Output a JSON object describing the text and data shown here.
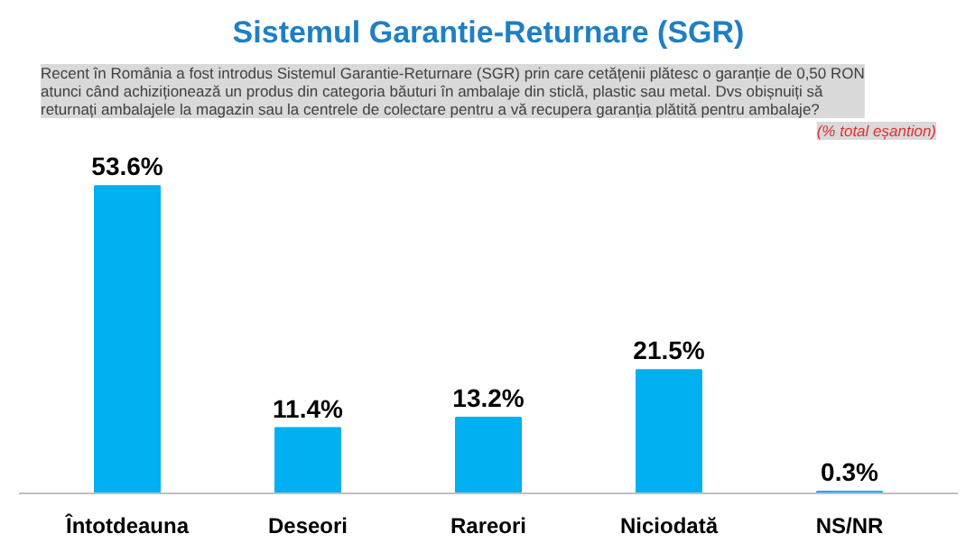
{
  "chart_data": {
    "type": "bar",
    "title": "Sistemul Garantie-Returnare (SGR)",
    "subtitle": "Recent în România a fost introdus Sistemul Garantie-Returnare (SGR) prin care cetățenii plătesc o garanție de 0,50 RON atunci când achiziționează un produs din categoria băuturi în ambalaje din sticlă, plastic sau metal. Dvs obișnuiți să returnați ambalajele la magazin sau la centrele de colectare pentru a vă recupera garanția plătită pentru ambalaje?",
    "annotations": [
      "(% total eșantion)"
    ],
    "categories": [
      "Întotdeauna",
      "Deseori",
      "Rareori",
      "Niciodată",
      "NS/NR"
    ],
    "values": [
      53.6,
      11.4,
      13.2,
      21.5,
      0.3
    ],
    "value_labels": [
      "53.6%",
      "11.4%",
      "13.2%",
      "21.5%",
      "0.3%"
    ],
    "color": "#00b0f0",
    "grid": false
  }
}
